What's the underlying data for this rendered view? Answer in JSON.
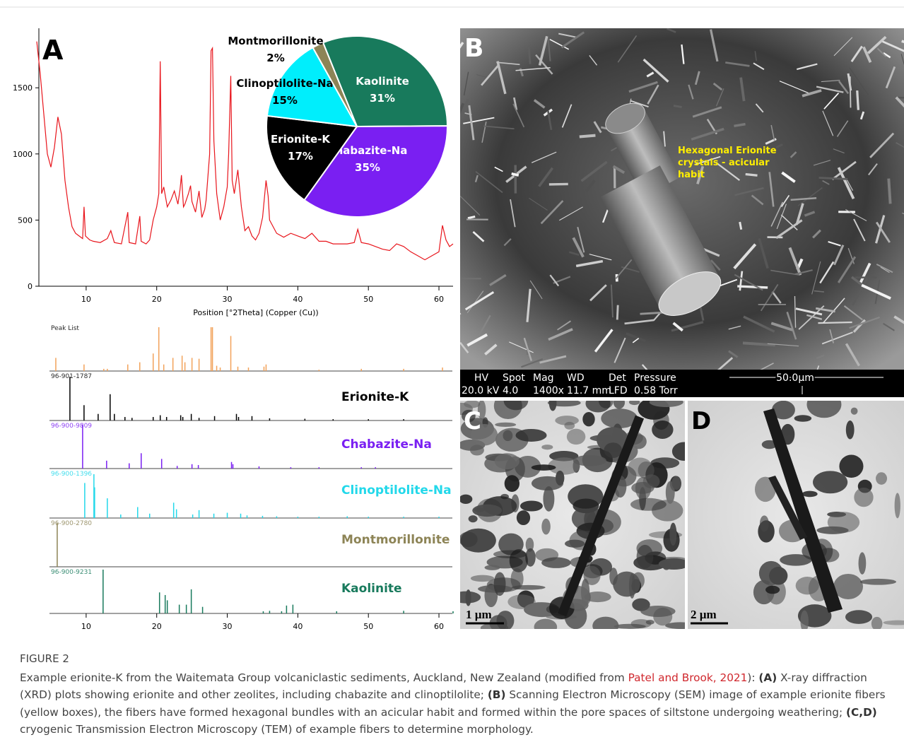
{
  "panels": {
    "a": "A",
    "b": "B",
    "c": "C",
    "d": "D"
  },
  "sem": {
    "annotation": [
      "Hexagonal Erionite",
      "crystals - acicular",
      "habit"
    ],
    "info_header": [
      "HV",
      "Spot",
      "Mag",
      "WD",
      "Det",
      "Pressure"
    ],
    "info_values": [
      "20.0 kV",
      "4.0",
      "1400x",
      "11.7 mm",
      "LFD",
      "0.58  Torr"
    ],
    "scale": "50.0µm"
  },
  "tem": {
    "c_scale": "1 µm",
    "d_scale": "2 µm"
  },
  "chart_data": [
    {
      "type": "line",
      "xlabel": "Position [°2Theta] (Copper (Cu))",
      "color": "#e8141b",
      "xlim": [
        3,
        62
      ],
      "ylim": [
        0,
        1950
      ],
      "xticks": [
        10,
        20,
        30,
        40,
        50,
        60
      ],
      "yticks": [
        0,
        500,
        1000,
        1500
      ],
      "x": [
        3,
        3.5,
        4,
        4.5,
        5,
        5.5,
        6,
        6.5,
        7,
        7.5,
        8,
        8.5,
        9,
        9.5,
        9.7,
        9.9,
        10.5,
        11,
        12,
        13,
        13.5,
        14,
        15,
        15.9,
        16.1,
        17,
        17.6,
        17.8,
        18.5,
        19,
        19.5,
        20,
        20.3,
        20.5,
        20.7,
        21,
        21.5,
        22,
        22.5,
        23,
        23.3,
        23.5,
        23.8,
        24,
        24.5,
        24.8,
        25,
        25.5,
        26,
        26.4,
        26.8,
        27,
        27.5,
        27.7,
        27.9,
        28.1,
        28.5,
        29,
        29.5,
        30,
        30.2,
        30.5,
        30.7,
        31,
        31.5,
        32,
        32.5,
        33,
        33.5,
        34,
        34.5,
        35,
        35.5,
        35.8,
        36,
        37,
        38,
        39,
        40,
        41,
        42,
        43,
        44,
        45,
        46,
        47,
        48,
        48.5,
        49,
        50,
        51,
        52,
        53,
        54,
        55,
        56,
        57,
        58,
        59,
        60,
        60.5,
        61,
        61.5,
        62
      ],
      "values": [
        1850,
        1600,
        1300,
        1000,
        900,
        1050,
        1280,
        1150,
        800,
        600,
        450,
        400,
        380,
        360,
        600,
        380,
        350,
        340,
        330,
        360,
        420,
        330,
        320,
        560,
        330,
        320,
        530,
        340,
        320,
        350,
        500,
        600,
        700,
        1700,
        700,
        750,
        600,
        650,
        720,
        620,
        730,
        840,
        600,
        620,
        700,
        760,
        640,
        560,
        720,
        520,
        580,
        650,
        1000,
        1780,
        1800,
        1100,
        700,
        500,
        600,
        750,
        1000,
        1590,
        800,
        700,
        880,
        600,
        420,
        450,
        380,
        350,
        400,
        520,
        800,
        680,
        500,
        400,
        370,
        400,
        380,
        360,
        400,
        340,
        340,
        320,
        320,
        320,
        330,
        430,
        330,
        320,
        300,
        280,
        270,
        320,
        300,
        260,
        230,
        200,
        230,
        260,
        460,
        350,
        300,
        320
      ]
    },
    {
      "type": "pie",
      "categories": [
        "Kaolinite",
        "Chabazite-Na",
        "Erionite-K",
        "Clinoptilolite-Na",
        "Montmorillonite"
      ],
      "values": [
        31,
        35,
        17,
        15,
        2
      ],
      "value_labels": [
        "31%",
        "35%",
        "17%",
        "15%",
        "2%"
      ],
      "colors": [
        "#187a5c",
        "#7a1ff2",
        "#000000",
        "#00eefc",
        "#8d8456"
      ]
    },
    {
      "type": "stick",
      "xlim": [
        3,
        62
      ],
      "xticks": [
        10,
        20,
        30,
        40,
        50,
        60
      ],
      "patterns": [
        {
          "code": "Peak List",
          "color": "#f2a25a",
          "x": [
            5.7,
            9.7,
            12.5,
            13,
            15.9,
            17.6,
            19.5,
            20.3,
            21,
            22.3,
            23.6,
            24,
            25,
            26,
            27.7,
            27.9,
            28.5,
            29,
            30.5,
            31.5,
            33,
            35.2,
            35.5,
            43,
            49,
            55,
            60.5
          ],
          "values": [
            30,
            15,
            5,
            5,
            15,
            20,
            40,
            100,
            15,
            30,
            35,
            20,
            30,
            28,
            100,
            100,
            12,
            8,
            80,
            10,
            8,
            10,
            15,
            3,
            5,
            5,
            8
          ]
        },
        {
          "code": "96-901-1787",
          "name": "Erionite-K",
          "color": "#000000",
          "x": [
            7.7,
            9.7,
            11.7,
            13.4,
            14,
            15.5,
            16.5,
            19.5,
            20.5,
            21.4,
            23.4,
            23.7,
            24.9,
            26,
            28.2,
            31.3,
            31.6,
            33.5,
            36,
            41,
            45,
            50,
            55
          ],
          "values": [
            100,
            35,
            15,
            60,
            15,
            8,
            6,
            8,
            12,
            8,
            12,
            8,
            15,
            6,
            10,
            15,
            8,
            10,
            5,
            4,
            3,
            3,
            3
          ]
        },
        {
          "code": "96-900-9809",
          "name": "Chabazite-Na",
          "color": "#7a1ff2",
          "x": [
            9.5,
            12.9,
            16.1,
            17.8,
            20.7,
            22.9,
            25,
            25.9,
            30.6,
            30.8,
            34.5,
            39,
            43,
            49,
            51
          ],
          "values": [
            100,
            18,
            12,
            35,
            22,
            6,
            10,
            8,
            15,
            10,
            5,
            3,
            3,
            3,
            3
          ]
        },
        {
          "code": "96-900-1396",
          "name": "Clinoptilolite-Na",
          "color": "#22d8ea",
          "x": [
            9.8,
            11.1,
            11.2,
            13,
            14.9,
            17.3,
            19,
            22.4,
            22.8,
            25.1,
            26,
            28.1,
            30,
            31.9,
            32.8,
            35,
            37,
            40,
            43,
            47,
            50,
            55,
            60
          ],
          "values": [
            80,
            100,
            70,
            45,
            8,
            25,
            10,
            35,
            20,
            8,
            18,
            10,
            12,
            10,
            6,
            5,
            4,
            3,
            3,
            4,
            3,
            3,
            3
          ]
        },
        {
          "code": "96-900-2780",
          "name": "Montmorillonite",
          "color": "#8d8456",
          "x": [
            5.9
          ],
          "values": [
            100
          ]
        },
        {
          "code": "96-900-9231",
          "name": "Kaolinite",
          "color": "#187a5c",
          "x": [
            12.4,
            20.4,
            21.2,
            21.5,
            23.2,
            24.2,
            24.9,
            26.5,
            35.1,
            36,
            37.7,
            38.4,
            39.3,
            45.5,
            55,
            62
          ],
          "values": [
            100,
            48,
            42,
            30,
            20,
            20,
            55,
            15,
            5,
            6,
            5,
            18,
            20,
            5,
            6,
            5
          ]
        }
      ]
    }
  ],
  "caption": {
    "label": "FIGURE 2",
    "text": [
      "Example erionite-K from the Waitemata Group volcaniclastic sediments, Auckland, New Zealand (modified from ",
      "Patel and Brook, 2021",
      "): ",
      "(A)",
      " X-ray diffraction (XRD) plots showing erionite and other zeolites, including chabazite and clinoptilolite; ",
      "(B)",
      " Scanning Electron Microscopy (SEM) image of example erionite fibers (yellow boxes), the fibers have formed hexagonal bundles with an acicular habit and formed within the pore spaces of siltstone undergoing weathering; ",
      "(C,D)",
      " cryogenic Transmission Electron Microscopy (TEM) of example fibers to determine morphology."
    ]
  }
}
